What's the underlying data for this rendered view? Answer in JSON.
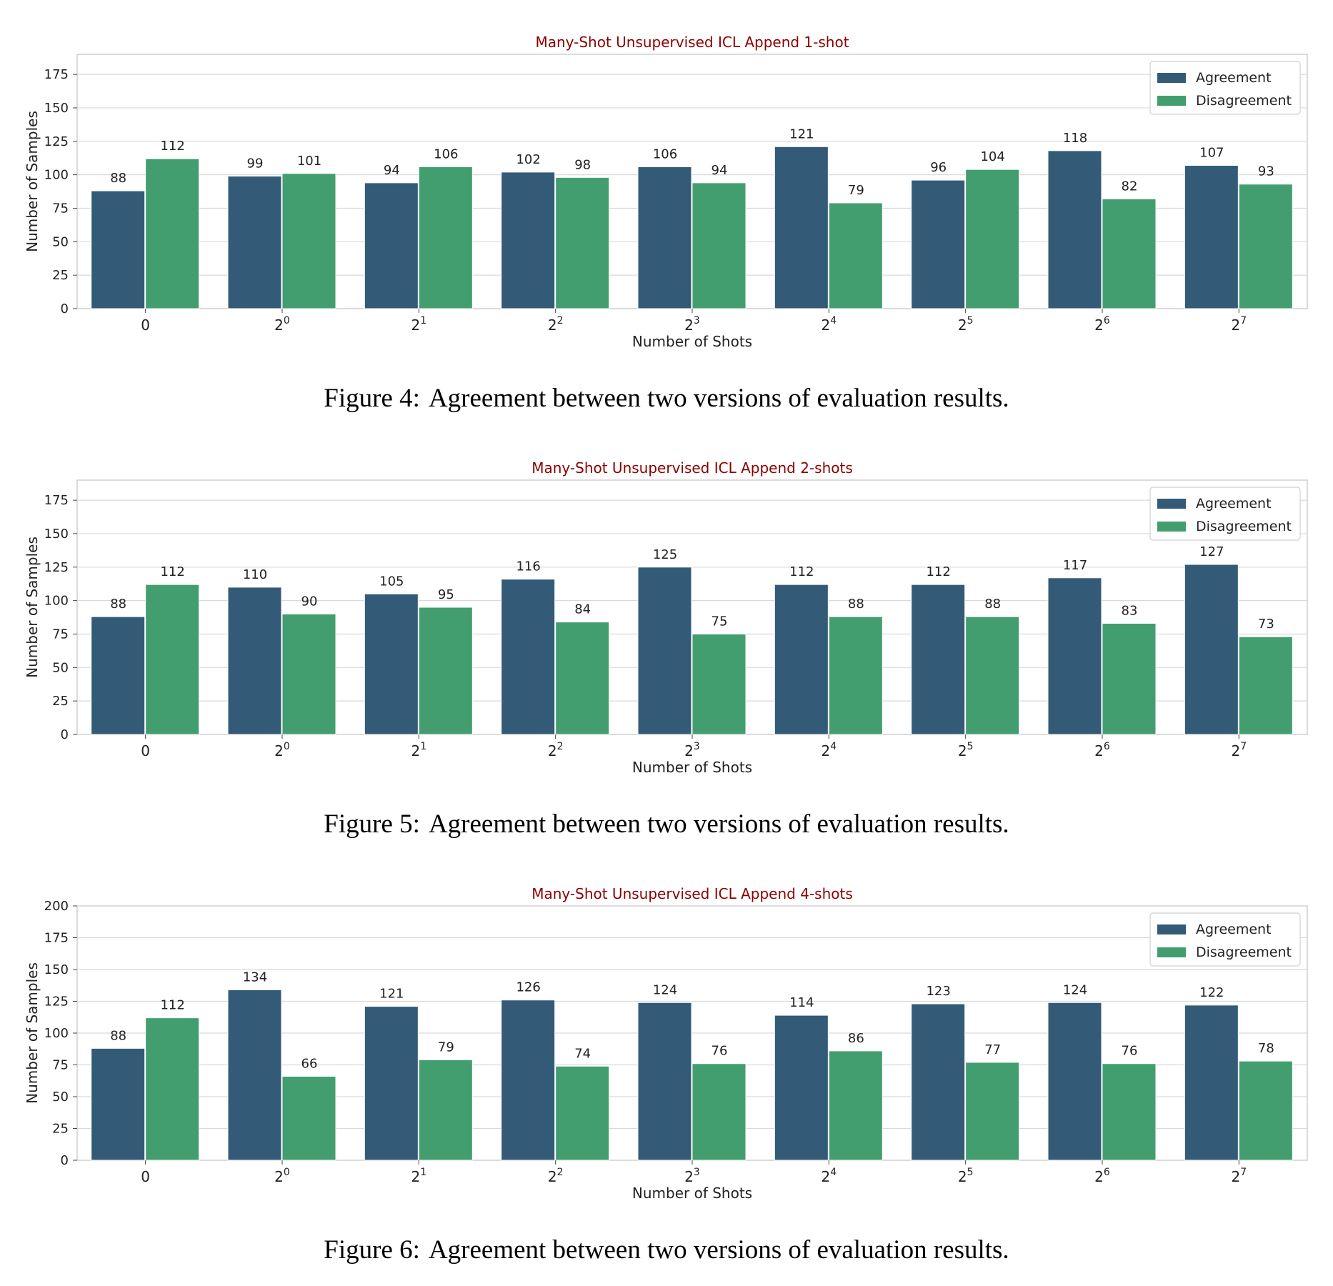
{
  "figures": [
    {
      "caption_number": "Figure 4:",
      "caption_text": "Agreement between two versions of evaluation results.",
      "chart_data": {
        "type": "bar",
        "title": "Many-Shot Unsupervised ICL Append 1-shot",
        "xlabel": "Number of Shots",
        "ylabel": "Number of Samples",
        "categories": [
          {
            "base": "0",
            "exp": ""
          },
          {
            "base": "2",
            "exp": "0"
          },
          {
            "base": "2",
            "exp": "1"
          },
          {
            "base": "2",
            "exp": "2"
          },
          {
            "base": "2",
            "exp": "3"
          },
          {
            "base": "2",
            "exp": "4"
          },
          {
            "base": "2",
            "exp": "5"
          },
          {
            "base": "2",
            "exp": "6"
          },
          {
            "base": "2",
            "exp": "7"
          }
        ],
        "series": [
          {
            "name": "Agreement",
            "color": "#335b78",
            "values": [
              88,
              99,
              94,
              102,
              106,
              121,
              96,
              118,
              107
            ]
          },
          {
            "name": "Disagreement",
            "color": "#439e6f",
            "values": [
              112,
              101,
              106,
              98,
              94,
              79,
              104,
              82,
              93
            ]
          }
        ],
        "ylim": [
          0,
          190
        ],
        "yticks": [
          0,
          25,
          50,
          75,
          100,
          125,
          150,
          175
        ],
        "grid": "horizontal",
        "legend": "top-right"
      }
    },
    {
      "caption_number": "Figure 5:",
      "caption_text": "Agreement between two versions of evaluation results.",
      "chart_data": {
        "type": "bar",
        "title": "Many-Shot Unsupervised ICL Append 2-shots",
        "xlabel": "Number of Shots",
        "ylabel": "Number of Samples",
        "categories": [
          {
            "base": "0",
            "exp": ""
          },
          {
            "base": "2",
            "exp": "0"
          },
          {
            "base": "2",
            "exp": "1"
          },
          {
            "base": "2",
            "exp": "2"
          },
          {
            "base": "2",
            "exp": "3"
          },
          {
            "base": "2",
            "exp": "4"
          },
          {
            "base": "2",
            "exp": "5"
          },
          {
            "base": "2",
            "exp": "6"
          },
          {
            "base": "2",
            "exp": "7"
          }
        ],
        "series": [
          {
            "name": "Agreement",
            "color": "#335b78",
            "values": [
              88,
              110,
              105,
              116,
              125,
              112,
              112,
              117,
              127
            ]
          },
          {
            "name": "Disagreement",
            "color": "#439e6f",
            "values": [
              112,
              90,
              95,
              84,
              75,
              88,
              88,
              83,
              73
            ]
          }
        ],
        "ylim": [
          0,
          190
        ],
        "yticks": [
          0,
          25,
          50,
          75,
          100,
          125,
          150,
          175
        ],
        "grid": "horizontal",
        "legend": "top-right"
      }
    },
    {
      "caption_number": "Figure 6:",
      "caption_text": "Agreement between two versions of evaluation results.",
      "chart_data": {
        "type": "bar",
        "title": "Many-Shot Unsupervised ICL Append 4-shots",
        "xlabel": "Number of Shots",
        "ylabel": "Number of Samples",
        "categories": [
          {
            "base": "0",
            "exp": ""
          },
          {
            "base": "2",
            "exp": "0"
          },
          {
            "base": "2",
            "exp": "1"
          },
          {
            "base": "2",
            "exp": "2"
          },
          {
            "base": "2",
            "exp": "3"
          },
          {
            "base": "2",
            "exp": "4"
          },
          {
            "base": "2",
            "exp": "5"
          },
          {
            "base": "2",
            "exp": "6"
          },
          {
            "base": "2",
            "exp": "7"
          }
        ],
        "series": [
          {
            "name": "Agreement",
            "color": "#335b78",
            "values": [
              88,
              134,
              121,
              126,
              124,
              114,
              123,
              124,
              122
            ]
          },
          {
            "name": "Disagreement",
            "color": "#439e6f",
            "values": [
              112,
              66,
              79,
              74,
              76,
              86,
              77,
              76,
              78
            ]
          }
        ],
        "ylim": [
          0,
          200
        ],
        "yticks": [
          0,
          25,
          50,
          75,
          100,
          125,
          150,
          175,
          200
        ],
        "grid": "horizontal",
        "legend": "top-right"
      }
    }
  ]
}
